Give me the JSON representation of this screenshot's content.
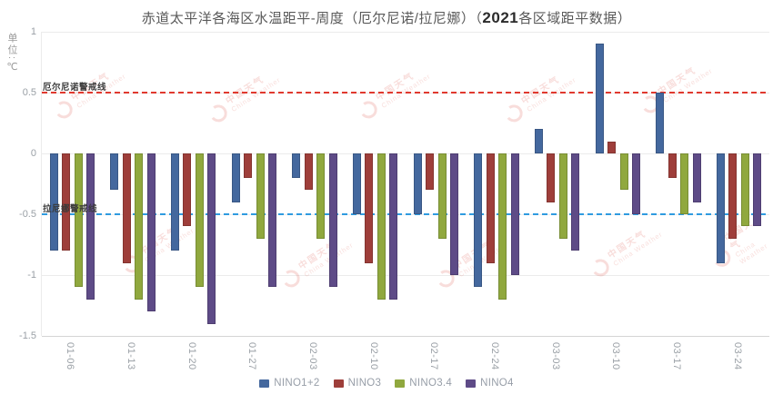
{
  "title": {
    "pre": "赤道太平洋各海区水温距平-周度（厄尔尼诺/拉尼娜）（",
    "bold": "2021",
    "post": "各区域距平数据）"
  },
  "y_axis": {
    "unit_label": "单位:℃",
    "ticks": [
      1,
      0.5,
      0,
      -0.5,
      -1,
      -1.5
    ],
    "tick_labels": [
      "1",
      "0.5",
      "0",
      "-0.5",
      "-1",
      "-1.5"
    ]
  },
  "threshold_lines": {
    "el_nino": {
      "label": "厄尔尼诺警戒线",
      "value": 0.5,
      "color": "#e0392e"
    },
    "la_nina": {
      "label": "拉尼娜警戒线",
      "value": -0.5,
      "color": "#2f9be0"
    }
  },
  "watermark": {
    "cn": "中国天气",
    "en": "China Weather"
  },
  "colors": {
    "nino12": "#44689e",
    "nino3": "#9e3e3a",
    "nino34": "#90a83e",
    "nino4": "#5e4b87",
    "grid": "#ebebeb",
    "axis_text": "#9aa0a6"
  },
  "chart_data": {
    "type": "bar",
    "title": "赤道太平洋各海区水温距平-周度（厄尔尼诺/拉尼娜）（2021各区域距平数据）",
    "ylabel": "单位:℃",
    "ylim": [
      -1.5,
      1
    ],
    "grid": true,
    "legend_position": "bottom",
    "categories": [
      "01-06",
      "01-13",
      "01-20",
      "01-27",
      "02-03",
      "02-10",
      "02-17",
      "02-24",
      "03-03",
      "03-10",
      "03-17",
      "03-24"
    ],
    "series": [
      {
        "name": "NINO1+2",
        "color": "#44689e",
        "values": [
          -0.8,
          -0.3,
          -0.8,
          -0.4,
          -0.2,
          -0.5,
          -0.5,
          -1.1,
          0.2,
          0.9,
          0.5,
          -0.9
        ]
      },
      {
        "name": "NINO3",
        "color": "#9e3e3a",
        "values": [
          -0.8,
          -0.9,
          -0.6,
          -0.2,
          -0.3,
          -0.9,
          -0.3,
          -0.9,
          -0.4,
          0.1,
          -0.2,
          -0.7
        ]
      },
      {
        "name": "NINO3.4",
        "color": "#90a83e",
        "values": [
          -1.1,
          -1.2,
          -1.1,
          -0.7,
          -0.7,
          -1.2,
          -0.7,
          -1.2,
          -0.7,
          -0.3,
          -0.5,
          -0.6
        ]
      },
      {
        "name": "NINO4",
        "color": "#5e4b87",
        "values": [
          -1.2,
          -1.3,
          -1.4,
          -1.1,
          -1.1,
          -1.2,
          -1.0,
          -1.0,
          -0.8,
          -0.5,
          -0.4,
          -0.6
        ]
      }
    ]
  }
}
